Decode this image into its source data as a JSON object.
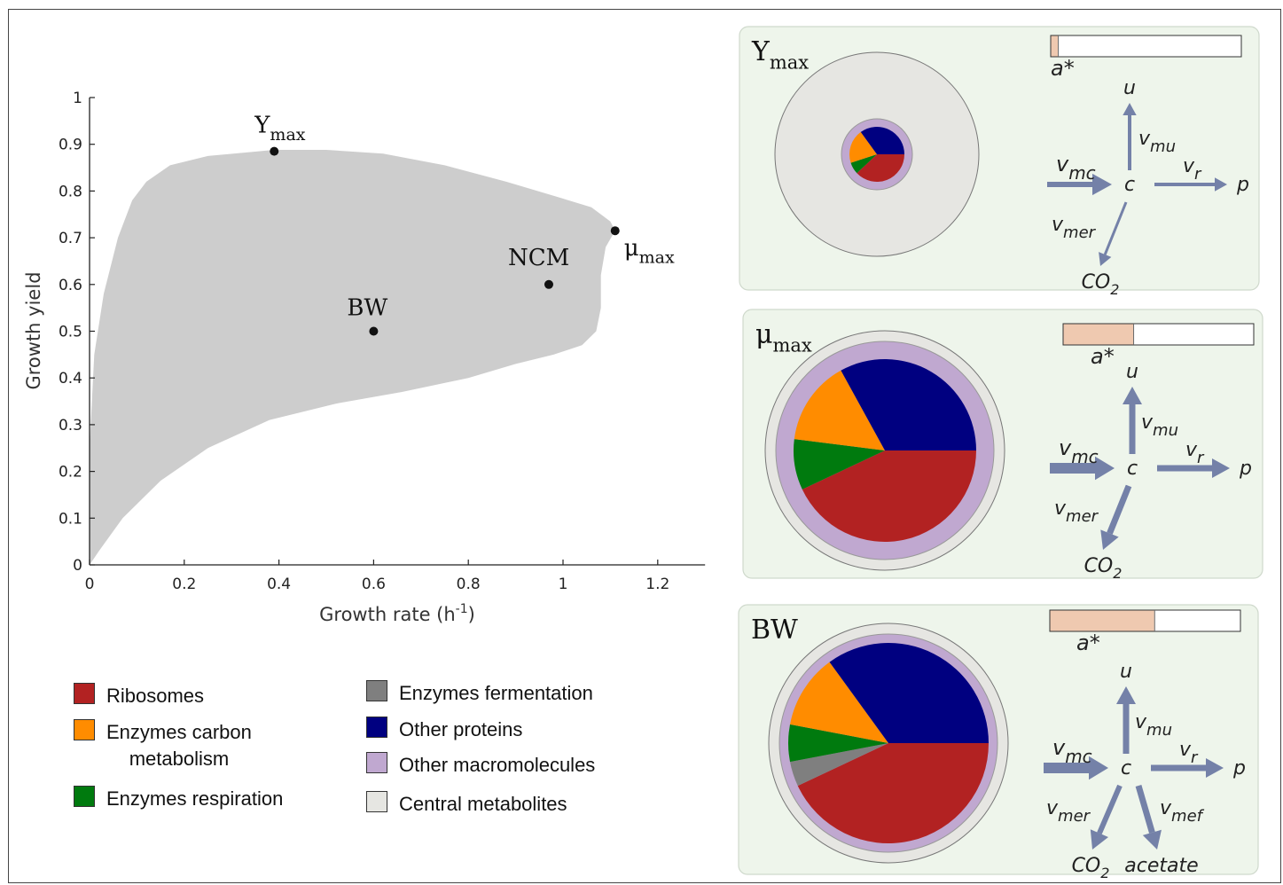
{
  "chart_data": {
    "type": "scatter",
    "xlabel": "Growth rate (h",
    "xlabel_exponent": "-1",
    "xlabel_close": ")",
    "ylabel": "Growth yield",
    "xlim": [
      0,
      1.3
    ],
    "ylim": [
      0,
      1
    ],
    "xticks": [
      "0",
      "0.2",
      "0.4",
      "0.6",
      "0.8",
      "1",
      "1.2"
    ],
    "yticks": [
      "0",
      "0.1",
      "0.2",
      "0.3",
      "0.4",
      "0.5",
      "0.6",
      "0.7",
      "0.8",
      "0.9",
      "1"
    ],
    "points": [
      {
        "label": "Y",
        "sub": "max",
        "x": 0.39,
        "y": 0.885
      },
      {
        "label": "μ",
        "sub": "max",
        "x": 1.11,
        "y": 0.715
      },
      {
        "label": "NCM",
        "sub": "",
        "x": 0.97,
        "y": 0.6
      },
      {
        "label": "BW",
        "sub": "",
        "x": 0.6,
        "y": 0.5
      }
    ],
    "feasible_region_boundary": [
      [
        0.0,
        0.0
      ],
      [
        0.0,
        0.25
      ],
      [
        0.01,
        0.45
      ],
      [
        0.03,
        0.58
      ],
      [
        0.06,
        0.7
      ],
      [
        0.09,
        0.78
      ],
      [
        0.12,
        0.82
      ],
      [
        0.17,
        0.855
      ],
      [
        0.25,
        0.875
      ],
      [
        0.39,
        0.888
      ],
      [
        0.5,
        0.888
      ],
      [
        0.62,
        0.88
      ],
      [
        0.75,
        0.855
      ],
      [
        0.88,
        0.82
      ],
      [
        0.98,
        0.79
      ],
      [
        1.06,
        0.765
      ],
      [
        1.1,
        0.735
      ],
      [
        1.11,
        0.715
      ],
      [
        1.09,
        0.68
      ],
      [
        1.08,
        0.62
      ],
      [
        1.08,
        0.55
      ],
      [
        1.07,
        0.5
      ],
      [
        1.04,
        0.47
      ],
      [
        0.98,
        0.45
      ],
      [
        0.9,
        0.43
      ],
      [
        0.8,
        0.4
      ],
      [
        0.66,
        0.37
      ],
      [
        0.52,
        0.345
      ],
      [
        0.38,
        0.31
      ],
      [
        0.25,
        0.25
      ],
      [
        0.15,
        0.18
      ],
      [
        0.07,
        0.1
      ],
      [
        0.02,
        0.03
      ],
      [
        0.0,
        0.0
      ]
    ],
    "colors": {
      "region": "#cdcdcd",
      "point": "#111111"
    }
  },
  "legend": [
    {
      "label": "Ribosomes",
      "color": "#b22222"
    },
    {
      "label": "Enzymes carbon",
      "label2": "metabolism",
      "color": "#ff8c00"
    },
    {
      "label": "Enzymes respiration",
      "color": "#007a0e"
    },
    {
      "label": "Enzymes fermentation",
      "color": "#7f7f7f"
    },
    {
      "label": "Other proteins",
      "color": "#000080"
    },
    {
      "label": "Other macromolecules",
      "color": "#c0a8d0"
    },
    {
      "label": "Central metabolites",
      "color": "#e6e6e2"
    }
  ],
  "panels": [
    {
      "title": "Y",
      "title_sub": "max",
      "a_star_label": "a*",
      "a_star_fraction": 0.04,
      "pie": [
        {
          "name": "Ribosomes",
          "fraction": 0.38,
          "color": "#b22222"
        },
        {
          "name": "Enzymes respiration",
          "fraction": 0.07,
          "color": "#007a0e"
        },
        {
          "name": "Enzymes carbon metabolism",
          "fraction": 0.2,
          "color": "#ff8c00"
        },
        {
          "name": "Other proteins",
          "fraction": 0.35,
          "color": "#000080"
        }
      ],
      "flux_labels": {
        "mc": "v",
        "mc_sub": "mc",
        "mu": "v",
        "mu_sub": "mu",
        "r": "v",
        "r_sub": "r",
        "mer": "v",
        "mer_sub": "mer",
        "u": "u",
        "c": "c",
        "p": "p",
        "co2": "CO",
        "co2_sub": "2"
      }
    },
    {
      "title": "μ",
      "title_sub": "max",
      "a_star_label": "a*",
      "a_star_fraction": 0.37,
      "pie": [
        {
          "name": "Ribosomes",
          "fraction": 0.43,
          "color": "#b22222"
        },
        {
          "name": "Enzymes respiration",
          "fraction": 0.09,
          "color": "#007a0e"
        },
        {
          "name": "Enzymes carbon metabolism",
          "fraction": 0.15,
          "color": "#ff8c00"
        },
        {
          "name": "Other proteins",
          "fraction": 0.33,
          "color": "#000080"
        }
      ],
      "flux_labels": {
        "mc": "v",
        "mc_sub": "mc",
        "mu": "v",
        "mu_sub": "mu",
        "r": "v",
        "r_sub": "r",
        "mer": "v",
        "mer_sub": "mer",
        "u": "u",
        "c": "c",
        "p": "p",
        "co2": "CO",
        "co2_sub": "2"
      }
    },
    {
      "title": "BW",
      "title_sub": "",
      "a_star_label": "a*",
      "a_star_fraction": 0.55,
      "pie": [
        {
          "name": "Ribosomes",
          "fraction": 0.43,
          "color": "#b22222"
        },
        {
          "name": "Enzymes fermentation",
          "fraction": 0.04,
          "color": "#7f7f7f"
        },
        {
          "name": "Enzymes respiration",
          "fraction": 0.06,
          "color": "#007a0e"
        },
        {
          "name": "Enzymes carbon metabolism",
          "fraction": 0.12,
          "color": "#ff8c00"
        },
        {
          "name": "Other proteins",
          "fraction": 0.35,
          "color": "#000080"
        }
      ],
      "flux_labels": {
        "mc": "v",
        "mc_sub": "mc",
        "mu": "v",
        "mu_sub": "mu",
        "r": "v",
        "r_sub": "r",
        "mer": "v",
        "mer_sub": "mer",
        "mef": "v",
        "mef_sub": "mef",
        "u": "u",
        "c": "c",
        "p": "p",
        "co2": "CO",
        "co2_sub": "2",
        "acetate": "acetate"
      }
    }
  ],
  "colors": {
    "panel_bg": "#eef5eb",
    "panel_border": "#cfd9cc",
    "arrow": "#7481a8",
    "bar_fill": "#efc9b0",
    "metabolites": "#e6e6e2",
    "macromolecules": "#c0a8d0"
  }
}
